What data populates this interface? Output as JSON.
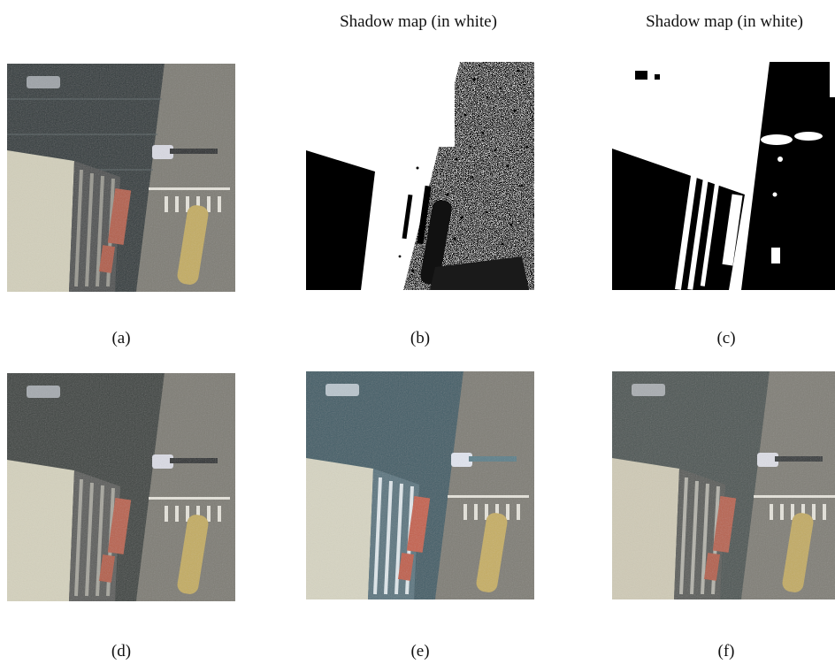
{
  "figure": {
    "titles": {
      "b": "Shadow map (in white)",
      "c": "Shadow map (in white)"
    },
    "labels": {
      "a": "(a)",
      "b": "(b)",
      "c": "(c)",
      "d": "(d)",
      "e": "(e)",
      "f": "(f)"
    }
  }
}
